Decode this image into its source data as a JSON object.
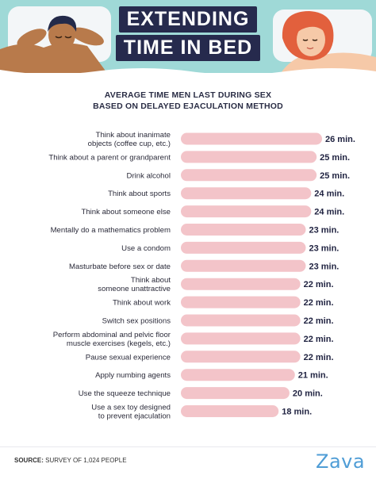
{
  "header": {
    "title_line1": "EXTENDING",
    "title_line2": "TIME IN BED"
  },
  "chart_data": {
    "type": "bar",
    "orientation": "horizontal",
    "title_line1": "AVERAGE TIME MEN LAST DURING SEX",
    "title_line2": "BASED ON DELAYED EJACULATION METHOD",
    "categories": [
      [
        "Think about inanimate",
        "objects (coffee cup, etc.)"
      ],
      [
        "Think about a parent or grandparent"
      ],
      [
        "Drink alcohol"
      ],
      [
        "Think about sports"
      ],
      [
        "Think about someone else"
      ],
      [
        "Mentally do a mathematics problem"
      ],
      [
        "Use a condom"
      ],
      [
        "Masturbate before sex or date"
      ],
      [
        "Think about",
        "someone unattractive"
      ],
      [
        "Think about work"
      ],
      [
        "Switch sex positions"
      ],
      [
        "Perform abdominal and pelvic floor",
        "muscle exercises (kegels, etc.)"
      ],
      [
        "Pause sexual experience"
      ],
      [
        "Apply numbing agents"
      ],
      [
        "Use the squeeze technique"
      ],
      [
        "Use a sex toy designed",
        "to prevent ejaculation"
      ]
    ],
    "values": [
      26,
      25,
      25,
      24,
      24,
      23,
      23,
      23,
      22,
      22,
      22,
      22,
      22,
      21,
      20,
      18
    ],
    "value_labels": [
      "26 min.",
      "25 min.",
      "25 min.",
      "24 min.",
      "24 min.",
      "23 min.",
      "23 min.",
      "23 min.",
      "22 min.",
      "22 min.",
      "22 min.",
      "22 min.",
      "22 min.",
      "21 min.",
      "20 min.",
      "18 min."
    ],
    "bar_color": "#f3c4c9"
  },
  "footer": {
    "source_label": "SOURCE:",
    "source_text": "SURVEY OF 1,024 PEOPLE",
    "logo": "Zava"
  },
  "colors": {
    "header_bg": "#9fd9d7",
    "title_bg": "#262a4d",
    "pillow": "#f3f6f8",
    "man_skin": "#b87a4b",
    "man_hair": "#232a4a",
    "woman_skin": "#f6c9a8",
    "woman_hair": "#e2603d",
    "logo": "#4f9dd6"
  }
}
